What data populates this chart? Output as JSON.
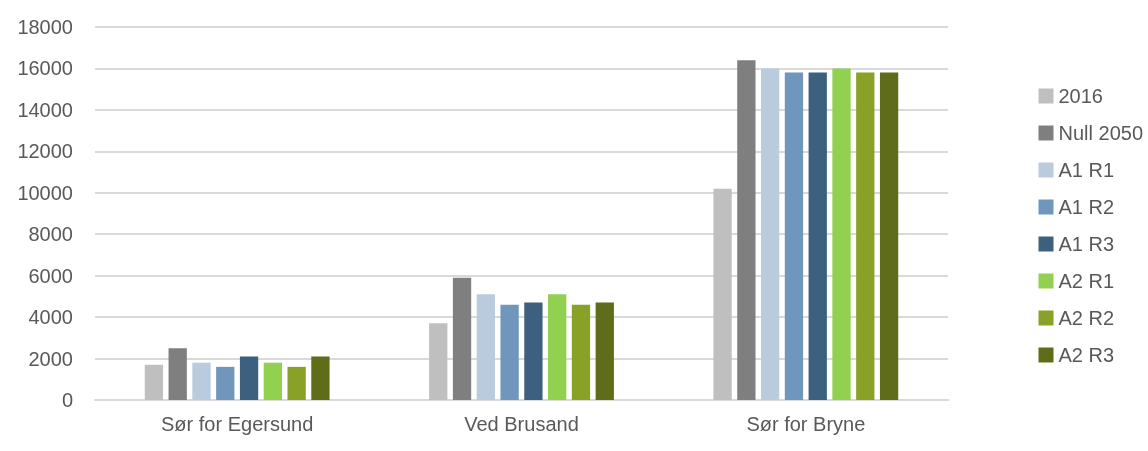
{
  "chart_data": {
    "type": "bar",
    "categories": [
      "Sør for Egersund",
      "Ved Brusand",
      "Sør for Bryne"
    ],
    "series": [
      {
        "name": "2016",
        "color": "#bfbfbf",
        "values": [
          1700,
          3700,
          10200
        ]
      },
      {
        "name": "Null 2050",
        "color": "#7f7f7f",
        "values": [
          2500,
          5900,
          16400
        ]
      },
      {
        "name": "A1 R1",
        "color": "#b9cbdd",
        "values": [
          1800,
          5100,
          16000
        ]
      },
      {
        "name": "A1 R2",
        "color": "#7096bb",
        "values": [
          1600,
          4600,
          15800
        ]
      },
      {
        "name": "A1 R3",
        "color": "#3e607f",
        "values": [
          2100,
          4700,
          15800
        ]
      },
      {
        "name": "A2 R1",
        "color": "#92d050",
        "values": [
          1800,
          5100,
          16000
        ]
      },
      {
        "name": "A2 R2",
        "color": "#8aa127",
        "values": [
          1600,
          4600,
          15800
        ]
      },
      {
        "name": "A2 R3",
        "color": "#5f6c19",
        "values": [
          2100,
          4700,
          15800
        ]
      }
    ],
    "ylim": [
      0,
      18000
    ],
    "yticks": [
      0,
      2000,
      4000,
      6000,
      8000,
      10000,
      12000,
      14000,
      16000,
      18000
    ],
    "grid": "y",
    "legend": "right"
  }
}
